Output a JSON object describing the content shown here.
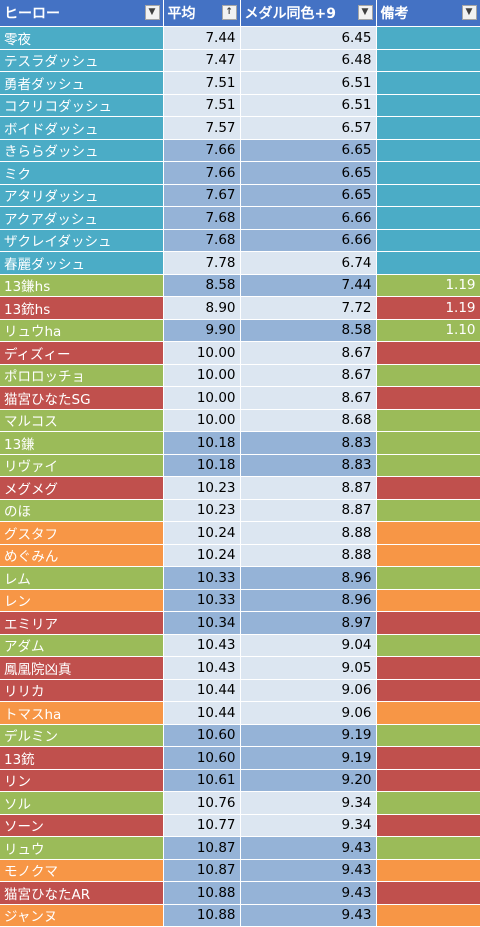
{
  "headers": {
    "hero": "ヒーロー",
    "average": "平均",
    "medal": "メダル同色+9",
    "note": "備考"
  },
  "colors": {
    "cyan": "#4bacc6",
    "green": "#9bbb59",
    "red": "#c0504d",
    "orange": "#f79646",
    "blue_light": "#dce6f1",
    "blue_dark": "#95b3d7"
  },
  "rows": [
    {
      "name": "零夜",
      "avg": "7.44",
      "medal": "6.45",
      "note": "",
      "color": "#4bacc6",
      "shade": "#dce6f1"
    },
    {
      "name": "テスラダッシュ",
      "avg": "7.47",
      "medal": "6.48",
      "note": "",
      "color": "#4bacc6",
      "shade": "#dce6f1"
    },
    {
      "name": "勇者ダッシュ",
      "avg": "7.51",
      "medal": "6.51",
      "note": "",
      "color": "#4bacc6",
      "shade": "#dce6f1"
    },
    {
      "name": "コクリコダッシュ",
      "avg": "7.51",
      "medal": "6.51",
      "note": "",
      "color": "#4bacc6",
      "shade": "#dce6f1"
    },
    {
      "name": "ボイドダッシュ",
      "avg": "7.57",
      "medal": "6.57",
      "note": "",
      "color": "#4bacc6",
      "shade": "#dce6f1"
    },
    {
      "name": "きららダッシュ",
      "avg": "7.66",
      "medal": "6.65",
      "note": "",
      "color": "#4bacc6",
      "shade": "#95b3d7"
    },
    {
      "name": "ミク",
      "avg": "7.66",
      "medal": "6.65",
      "note": "",
      "color": "#4bacc6",
      "shade": "#95b3d7"
    },
    {
      "name": "アタリダッシュ",
      "avg": "7.67",
      "medal": "6.65",
      "note": "",
      "color": "#4bacc6",
      "shade": "#95b3d7"
    },
    {
      "name": "アクアダッシュ",
      "avg": "7.68",
      "medal": "6.66",
      "note": "",
      "color": "#4bacc6",
      "shade": "#95b3d7"
    },
    {
      "name": "ザクレイダッシュ",
      "avg": "7.68",
      "medal": "6.66",
      "note": "",
      "color": "#4bacc6",
      "shade": "#95b3d7"
    },
    {
      "name": "春麗ダッシュ",
      "avg": "7.78",
      "medal": "6.74",
      "note": "",
      "color": "#4bacc6",
      "shade": "#dce6f1"
    },
    {
      "name": "13鎌hs",
      "avg": "8.58",
      "medal": "7.44",
      "note": "1.19",
      "color": "#9bbb59",
      "shade": "#95b3d7"
    },
    {
      "name": "13銃hs",
      "avg": "8.90",
      "medal": "7.72",
      "note": "1.19",
      "color": "#c0504d",
      "shade": "#dce6f1"
    },
    {
      "name": "リュウha",
      "avg": "9.90",
      "medal": "8.58",
      "note": "1.10",
      "color": "#9bbb59",
      "shade": "#95b3d7"
    },
    {
      "name": "ディズィー",
      "avg": "10.00",
      "medal": "8.67",
      "note": "",
      "color": "#c0504d",
      "shade": "#dce6f1"
    },
    {
      "name": "ポロロッチョ",
      "avg": "10.00",
      "medal": "8.67",
      "note": "",
      "color": "#9bbb59",
      "shade": "#dce6f1"
    },
    {
      "name": "猫宮ひなたSG",
      "avg": "10.00",
      "medal": "8.67",
      "note": "",
      "color": "#c0504d",
      "shade": "#dce6f1"
    },
    {
      "name": "マルコス",
      "avg": "10.00",
      "medal": "8.68",
      "note": "",
      "color": "#9bbb59",
      "shade": "#dce6f1"
    },
    {
      "name": "13鎌",
      "avg": "10.18",
      "medal": "8.83",
      "note": "",
      "color": "#9bbb59",
      "shade": "#95b3d7"
    },
    {
      "name": "リヴァイ",
      "avg": "10.18",
      "medal": "8.83",
      "note": "",
      "color": "#9bbb59",
      "shade": "#95b3d7"
    },
    {
      "name": "メグメグ",
      "avg": "10.23",
      "medal": "8.87",
      "note": "",
      "color": "#c0504d",
      "shade": "#dce6f1"
    },
    {
      "name": "のほ",
      "avg": "10.23",
      "medal": "8.87",
      "note": "",
      "color": "#9bbb59",
      "shade": "#dce6f1"
    },
    {
      "name": "グスタフ",
      "avg": "10.24",
      "medal": "8.88",
      "note": "",
      "color": "#f79646",
      "shade": "#dce6f1"
    },
    {
      "name": "めぐみん",
      "avg": "10.24",
      "medal": "8.88",
      "note": "",
      "color": "#f79646",
      "shade": "#dce6f1"
    },
    {
      "name": "レム",
      "avg": "10.33",
      "medal": "8.96",
      "note": "",
      "color": "#9bbb59",
      "shade": "#95b3d7"
    },
    {
      "name": "レン",
      "avg": "10.33",
      "medal": "8.96",
      "note": "",
      "color": "#f79646",
      "shade": "#95b3d7"
    },
    {
      "name": "エミリア",
      "avg": "10.34",
      "medal": "8.97",
      "note": "",
      "color": "#c0504d",
      "shade": "#95b3d7"
    },
    {
      "name": "アダム",
      "avg": "10.43",
      "medal": "9.04",
      "note": "",
      "color": "#9bbb59",
      "shade": "#dce6f1"
    },
    {
      "name": "鳳凰院凶真",
      "avg": "10.43",
      "medal": "9.05",
      "note": "",
      "color": "#c0504d",
      "shade": "#dce6f1"
    },
    {
      "name": "リリカ",
      "avg": "10.44",
      "medal": "9.06",
      "note": "",
      "color": "#c0504d",
      "shade": "#dce6f1"
    },
    {
      "name": "トマスha",
      "avg": "10.44",
      "medal": "9.06",
      "note": "",
      "color": "#f79646",
      "shade": "#dce6f1"
    },
    {
      "name": "デルミン",
      "avg": "10.60",
      "medal": "9.19",
      "note": "",
      "color": "#9bbb59",
      "shade": "#95b3d7"
    },
    {
      "name": "13銃",
      "avg": "10.60",
      "medal": "9.19",
      "note": "",
      "color": "#c0504d",
      "shade": "#95b3d7"
    },
    {
      "name": "リン",
      "avg": "10.61",
      "medal": "9.20",
      "note": "",
      "color": "#c0504d",
      "shade": "#95b3d7"
    },
    {
      "name": "ソル",
      "avg": "10.76",
      "medal": "9.34",
      "note": "",
      "color": "#9bbb59",
      "shade": "#dce6f1"
    },
    {
      "name": "ソーン",
      "avg": "10.77",
      "medal": "9.34",
      "note": "",
      "color": "#c0504d",
      "shade": "#dce6f1"
    },
    {
      "name": "リュウ",
      "avg": "10.87",
      "medal": "9.43",
      "note": "",
      "color": "#9bbb59",
      "shade": "#95b3d7"
    },
    {
      "name": "モノクマ",
      "avg": "10.87",
      "medal": "9.43",
      "note": "",
      "color": "#f79646",
      "shade": "#95b3d7"
    },
    {
      "name": "猫宮ひなたAR",
      "avg": "10.88",
      "medal": "9.43",
      "note": "",
      "color": "#c0504d",
      "shade": "#95b3d7"
    },
    {
      "name": "ジャンヌ",
      "avg": "10.88",
      "medal": "9.43",
      "note": "",
      "color": "#f79646",
      "shade": "#95b3d7"
    }
  ]
}
